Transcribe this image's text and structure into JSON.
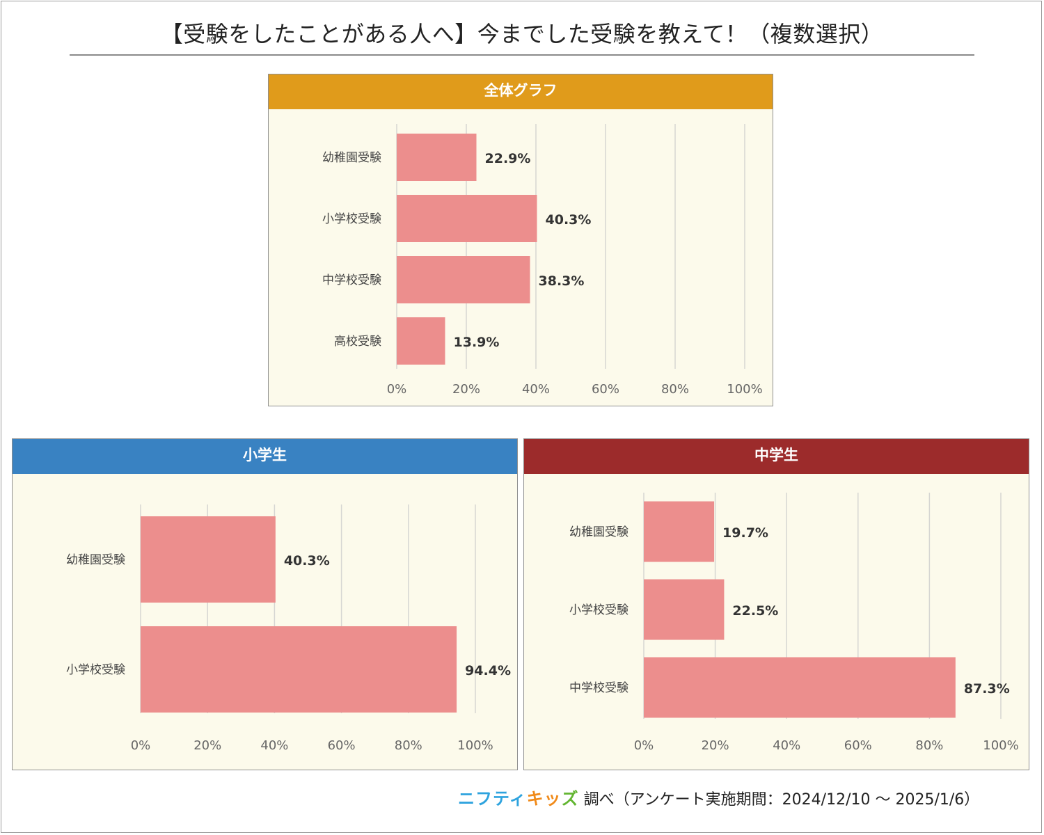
{
  "title": "【受験をしたことがある人へ】今までした受験を教えて！（複数選択）",
  "footer": {
    "logo_part1": "ニフティ",
    "logo_part2": "キッ",
    "logo_part3": "ズ",
    "text": "調べ（アンケート実施期間：2024/12/10 ～ 2025/1/6）"
  },
  "colors": {
    "bar": "#ec8e8d",
    "grid": "#d6d6d2",
    "axis_text": "#666666",
    "label_text": "#444444",
    "value_text": "#333333",
    "header_overall": "#e09b1b",
    "header_elementary": "#3982c2",
    "header_junior": "#9c2b2b"
  },
  "chart_data": [
    {
      "type": "bar",
      "orientation": "horizontal",
      "title": "全体グラフ",
      "categories": [
        "幼稚園受験",
        "小学校受験",
        "中学校受験",
        "高校受験"
      ],
      "values": [
        22.9,
        40.3,
        38.3,
        13.9
      ],
      "value_labels": [
        "22.9%",
        "40.3%",
        "38.3%",
        "13.9%"
      ],
      "xlim": [
        0,
        100
      ],
      "xticks": [
        "0%",
        "20%",
        "40%",
        "60%",
        "80%",
        "100%"
      ],
      "grid": true,
      "legend": "none"
    },
    {
      "type": "bar",
      "orientation": "horizontal",
      "title": "小学生",
      "categories": [
        "幼稚園受験",
        "小学校受験"
      ],
      "values": [
        40.3,
        94.4
      ],
      "value_labels": [
        "40.3%",
        "94.4%"
      ],
      "xlim": [
        0,
        100
      ],
      "xticks": [
        "0%",
        "20%",
        "40%",
        "60%",
        "80%",
        "100%"
      ],
      "grid": true,
      "legend": "none"
    },
    {
      "type": "bar",
      "orientation": "horizontal",
      "title": "中学生",
      "categories": [
        "幼稚園受験",
        "小学校受験",
        "中学校受験"
      ],
      "values": [
        19.7,
        22.5,
        87.3
      ],
      "value_labels": [
        "19.7%",
        "22.5%",
        "87.3%"
      ],
      "xlim": [
        0,
        100
      ],
      "xticks": [
        "0%",
        "20%",
        "40%",
        "60%",
        "80%",
        "100%"
      ],
      "grid": true,
      "legend": "none"
    }
  ]
}
